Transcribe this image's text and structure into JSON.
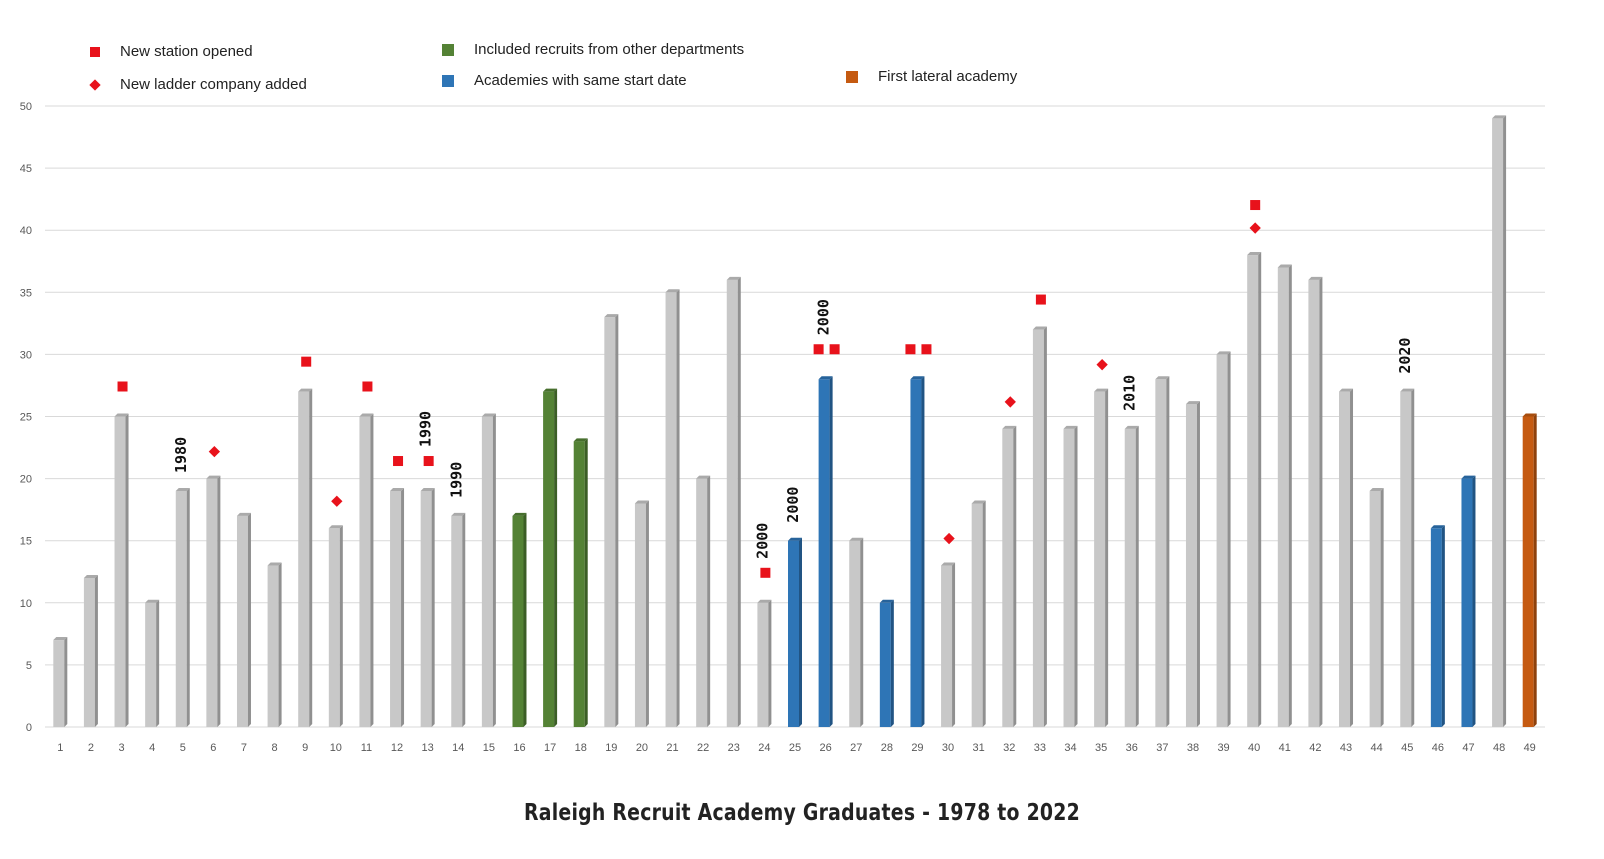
{
  "legend": {
    "station": "New station opened",
    "ladder": "New ladder company added",
    "other_depts": "Included recruits from other departments",
    "same_date": "Academies with  same start date",
    "lateral": "First lateral academy"
  },
  "chart_data": {
    "type": "bar",
    "title": "Raleigh Recruit Academy Graduates - 1978 to 2022",
    "xlabel": "",
    "ylabel": "",
    "ylim": [
      0,
      50
    ],
    "yticks": [
      0,
      5,
      10,
      15,
      20,
      25,
      30,
      35,
      40,
      45,
      50
    ],
    "grid": true,
    "categories": [
      "1",
      "2",
      "3",
      "4",
      "5",
      "6",
      "7",
      "8",
      "9",
      "10",
      "11",
      "12",
      "13",
      "14",
      "15",
      "16",
      "17",
      "18",
      "19",
      "20",
      "21",
      "22",
      "23",
      "24",
      "25",
      "26",
      "27",
      "28",
      "29",
      "30",
      "31",
      "32",
      "33",
      "34",
      "35",
      "36",
      "37",
      "38",
      "39",
      "40",
      "41",
      "42",
      "43",
      "44",
      "45",
      "46",
      "47",
      "48",
      "49"
    ],
    "values": [
      7,
      12,
      25,
      10,
      19,
      20,
      17,
      13,
      27,
      16,
      25,
      19,
      19,
      17,
      25,
      17,
      27,
      23,
      33,
      18,
      35,
      20,
      36,
      10,
      15,
      28,
      15,
      10,
      28,
      13,
      18,
      24,
      32,
      24,
      27,
      24,
      28,
      26,
      30,
      38,
      37,
      36,
      27,
      19,
      27,
      16,
      20,
      49,
      25
    ],
    "groups": {
      "other_depts": [
        16,
        17,
        18
      ],
      "same_date": [
        25,
        26,
        28,
        29,
        46,
        47
      ],
      "lateral": [
        49
      ]
    },
    "colors": {
      "default": "#c8c8c8",
      "other_depts": "#548235",
      "same_date": "#2e75b6",
      "lateral": "#c55a11",
      "marker": "#e8121b"
    },
    "markers": {
      "station": [
        3,
        9,
        11,
        12,
        13,
        24,
        26,
        26,
        29,
        29,
        33,
        40
      ],
      "ladder": [
        6,
        10,
        30,
        32,
        35,
        40
      ]
    },
    "year_annotations": [
      {
        "bar": 5,
        "text": "1980"
      },
      {
        "bar": 13,
        "text": "1990"
      },
      {
        "bar": 14,
        "text": "1990"
      },
      {
        "bar": 24,
        "text": "2000"
      },
      {
        "bar": 25,
        "text": "2000"
      },
      {
        "bar": 26,
        "text": "2000"
      },
      {
        "bar": 36,
        "text": "2010"
      },
      {
        "bar": 45,
        "text": "2020"
      }
    ]
  }
}
